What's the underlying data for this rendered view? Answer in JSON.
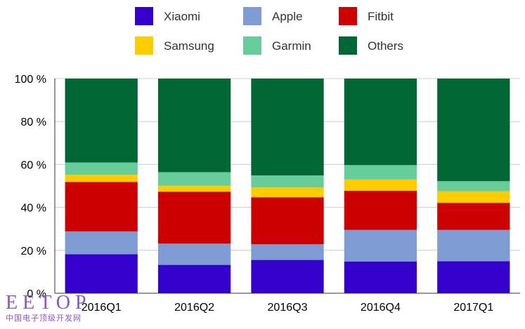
{
  "chart_data": {
    "type": "bar",
    "stacked": true,
    "categories": [
      "2016Q1",
      "2016Q2",
      "2016Q3",
      "2016Q4",
      "2017Q1"
    ],
    "series": [
      {
        "name": "Xiaomi",
        "color": "#3300cc",
        "values": [
          18.2,
          13.2,
          15.5,
          14.8,
          14.9
        ]
      },
      {
        "name": "Apple",
        "color": "#7e9bd3",
        "values": [
          10.6,
          9.9,
          7.3,
          14.7,
          14.6
        ]
      },
      {
        "name": "Fitbit",
        "color": "#cc0000",
        "values": [
          23.0,
          24.2,
          21.9,
          18.2,
          12.6
        ]
      },
      {
        "name": "Samsung",
        "color": "#ffcc00",
        "values": [
          3.4,
          2.8,
          4.6,
          5.3,
          5.4
        ]
      },
      {
        "name": "Garmin",
        "color": "#66cc99",
        "values": [
          5.7,
          6.3,
          5.6,
          6.7,
          4.7
        ]
      },
      {
        "name": "Others",
        "color": "#006633",
        "values": [
          39.1,
          43.6,
          45.1,
          40.3,
          47.8
        ]
      }
    ],
    "ylim": [
      0,
      100
    ],
    "yticks": [
      "0 %",
      "20 %",
      "40 %",
      "60 %",
      "80 %",
      "100 %"
    ],
    "grid": true,
    "legend": "top"
  },
  "watermark": {
    "main": "EETOP",
    "sub": "中国电子顶级开发网"
  }
}
